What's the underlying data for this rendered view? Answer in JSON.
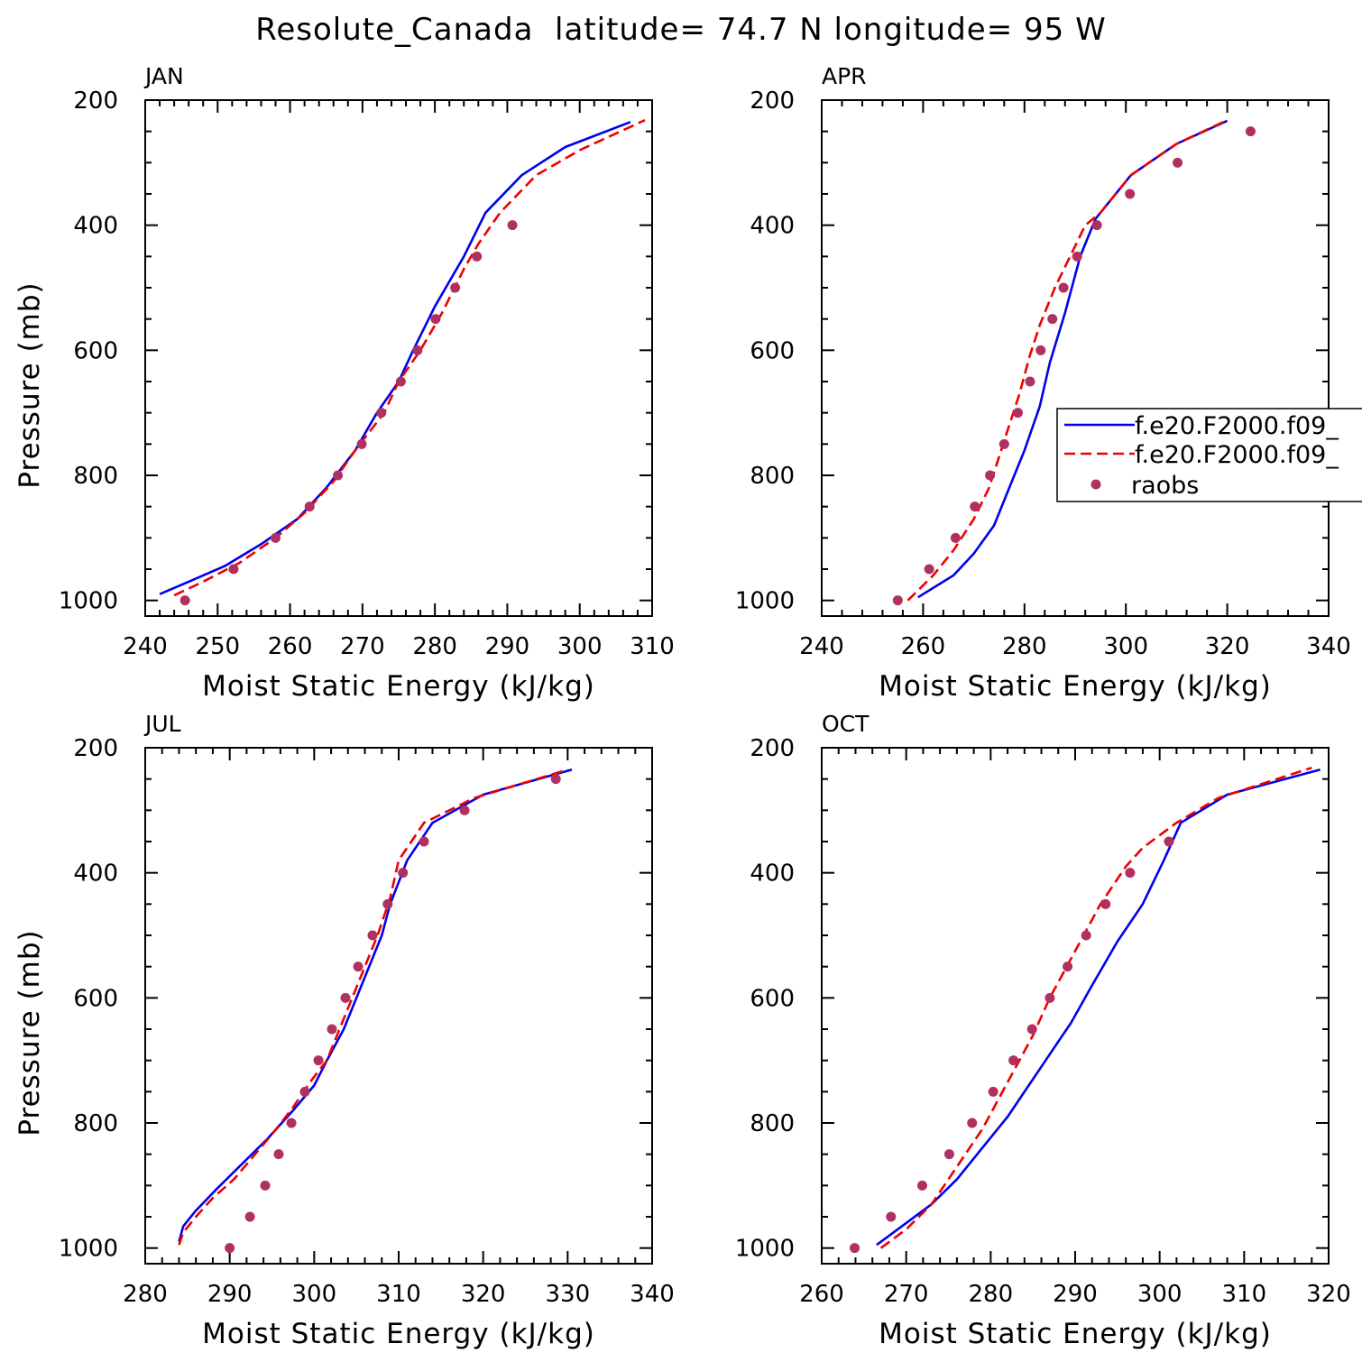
{
  "figure_title": "Resolute_Canada  latitude= 74.7 N longitude= 95 W",
  "legend": {
    "entries": [
      {
        "label": "f.e20.F2000.f09_",
        "style": "solid",
        "color": "#0000ee"
      },
      {
        "label": "f.e20.F2000.f09_",
        "style": "dashed",
        "color": "#ee0000"
      },
      {
        "label": "raobs",
        "style": "marker",
        "color": "#b03060"
      }
    ]
  },
  "chart_data": [
    {
      "type": "line",
      "title": "JAN",
      "xlabel": "Moist Static Energy (kJ/kg)",
      "ylabel": "Pressure (mb)",
      "xlim": [
        240,
        310
      ],
      "ylim": [
        1025,
        200
      ],
      "xticks": [
        240,
        250,
        260,
        270,
        280,
        290,
        300,
        310
      ],
      "yticks": [
        200,
        400,
        600,
        800,
        1000
      ],
      "series": [
        {
          "name": "f.e20.F2000.f09_",
          "style": "solid",
          "color": "#0000ee",
          "points": [
            [
              242,
              990
            ],
            [
              246,
              970
            ],
            [
              251,
              945
            ],
            [
              256,
              910
            ],
            [
              261,
              870
            ],
            [
              265,
              820
            ],
            [
              269,
              760
            ],
            [
              272,
              700
            ],
            [
              275,
              650
            ],
            [
              277,
              600
            ],
            [
              280,
              530
            ],
            [
              284,
              450
            ],
            [
              287,
              380
            ],
            [
              292,
              320
            ],
            [
              298,
              275
            ],
            [
              307,
              235
            ]
          ]
        },
        {
          "name": "f.e20.F2000.f09_",
          "style": "dashed",
          "color": "#ee0000",
          "points": [
            [
              244,
              992
            ],
            [
              248,
              970
            ],
            [
              253,
              940
            ],
            [
              258,
              900
            ],
            [
              262,
              860
            ],
            [
              266,
              810
            ],
            [
              269,
              760
            ],
            [
              273,
              700
            ],
            [
              275,
              650
            ],
            [
              278,
              600
            ],
            [
              281,
              540
            ],
            [
              284,
              470
            ],
            [
              286,
              430
            ],
            [
              289,
              380
            ],
            [
              294,
              320
            ],
            [
              300,
              280
            ],
            [
              309,
              232
            ]
          ]
        },
        {
          "name": "raobs",
          "style": "marker",
          "color": "#b03060",
          "points": [
            [
              245.5,
              1000
            ],
            [
              252.2,
              950
            ],
            [
              258,
              900
            ],
            [
              262.7,
              850
            ],
            [
              266.6,
              800
            ],
            [
              269.9,
              750
            ],
            [
              272.6,
              700
            ],
            [
              275.3,
              650
            ],
            [
              277.6,
              600
            ],
            [
              280.1,
              550
            ],
            [
              282.8,
              500
            ],
            [
              285.8,
              450
            ],
            [
              290.7,
              400
            ]
          ]
        }
      ]
    },
    {
      "type": "line",
      "title": "APR",
      "xlabel": "Moist Static Energy (kJ/kg)",
      "ylabel": "",
      "xlim": [
        240,
        340
      ],
      "ylim": [
        1025,
        200
      ],
      "xticks": [
        240,
        260,
        280,
        300,
        320,
        340
      ],
      "yticks": [
        200,
        400,
        600,
        800,
        1000
      ],
      "series": [
        {
          "name": "f.e20.F2000.f09_",
          "style": "solid",
          "color": "#0000ee",
          "points": [
            [
              259,
              995
            ],
            [
              266,
              960
            ],
            [
              270,
              925
            ],
            [
              274,
              880
            ],
            [
              277,
              820
            ],
            [
              280,
              760
            ],
            [
              283,
              690
            ],
            [
              285,
              620
            ],
            [
              288,
              540
            ],
            [
              291,
              450
            ],
            [
              294,
              390
            ],
            [
              297,
              360
            ],
            [
              301,
              320
            ],
            [
              310,
              270
            ],
            [
              320,
              233
            ]
          ]
        },
        {
          "name": "f.e20.F2000.f09_",
          "style": "dashed",
          "color": "#ee0000",
          "points": [
            [
              257,
              1000
            ],
            [
              262,
              960
            ],
            [
              266,
              920
            ],
            [
              270,
              870
            ],
            [
              273,
              820
            ],
            [
              275,
              770
            ],
            [
              277,
              720
            ],
            [
              279,
              670
            ],
            [
              281,
              610
            ],
            [
              283,
              560
            ],
            [
              286,
              500
            ],
            [
              289,
              450
            ],
            [
              292,
              400
            ],
            [
              295,
              380
            ],
            [
              301,
              320
            ],
            [
              310,
              270
            ],
            [
              320,
              232
            ]
          ]
        },
        {
          "name": "raobs",
          "style": "marker",
          "color": "#b03060",
          "points": [
            [
              255,
              1000
            ],
            [
              261.2,
              950
            ],
            [
              266.4,
              900
            ],
            [
              270.2,
              850
            ],
            [
              273.2,
              800
            ],
            [
              276,
              750
            ],
            [
              278.7,
              700
            ],
            [
              281.1,
              650
            ],
            [
              283.2,
              600
            ],
            [
              285.5,
              550
            ],
            [
              287.7,
              500
            ],
            [
              290.4,
              450
            ],
            [
              294.3,
              400
            ],
            [
              300.8,
              350
            ],
            [
              310.2,
              300
            ],
            [
              324.6,
              250
            ]
          ]
        }
      ]
    },
    {
      "type": "line",
      "title": "JUL",
      "xlabel": "Moist Static Energy (kJ/kg)",
      "ylabel": "Pressure (mb)",
      "xlim": [
        280,
        340
      ],
      "ylim": [
        1025,
        200
      ],
      "xticks": [
        280,
        290,
        300,
        310,
        320,
        330,
        340
      ],
      "yticks": [
        200,
        400,
        600,
        800,
        1000
      ],
      "series": [
        {
          "name": "f.e20.F2000.f09_",
          "style": "solid",
          "color": "#0000ee",
          "points": [
            [
              284,
              990
            ],
            [
              284.5,
              965
            ],
            [
              286,
              940
            ],
            [
              288.5,
              905
            ],
            [
              291.5,
              865
            ],
            [
              294.5,
              825
            ],
            [
              297.5,
              780
            ],
            [
              300,
              740
            ],
            [
              301.5,
              700
            ],
            [
              303.5,
              650
            ],
            [
              305,
              600
            ],
            [
              306.5,
              550
            ],
            [
              308,
              500
            ],
            [
              309,
              450
            ],
            [
              311,
              380
            ],
            [
              314,
              320
            ],
            [
              320,
              275
            ],
            [
              330.5,
              235
            ]
          ]
        },
        {
          "name": "f.e20.F2000.f09_",
          "style": "dashed",
          "color": "#ee0000",
          "points": [
            [
              284,
              995
            ],
            [
              284.5,
              975
            ],
            [
              286,
              950
            ],
            [
              288,
              920
            ],
            [
              290.5,
              890
            ],
            [
              293,
              850
            ],
            [
              295.5,
              810
            ],
            [
              297.5,
              775
            ],
            [
              299.5,
              735
            ],
            [
              301.5,
              700
            ],
            [
              303,
              650
            ],
            [
              304.5,
              600
            ],
            [
              306,
              550
            ],
            [
              307.5,
              500
            ],
            [
              309,
              440
            ],
            [
              310,
              380
            ],
            [
              313,
              320
            ],
            [
              319,
              280
            ],
            [
              330,
              235
            ]
          ]
        },
        {
          "name": "raobs",
          "style": "marker",
          "color": "#b03060",
          "points": [
            [
              290,
              1000
            ],
            [
              292.4,
              950
            ],
            [
              294.2,
              900
            ],
            [
              295.8,
              850
            ],
            [
              297.3,
              800
            ],
            [
              298.9,
              750
            ],
            [
              300.5,
              700
            ],
            [
              302.1,
              650
            ],
            [
              303.7,
              600
            ],
            [
              305.2,
              550
            ],
            [
              306.9,
              500
            ],
            [
              308.7,
              450
            ],
            [
              310.5,
              400
            ],
            [
              313,
              350
            ],
            [
              317.8,
              300
            ],
            [
              328.6,
              250
            ]
          ]
        }
      ]
    },
    {
      "type": "line",
      "title": "OCT",
      "xlabel": "Moist Static Energy (kJ/kg)",
      "ylabel": "",
      "xlim": [
        260,
        320
      ],
      "ylim": [
        1025,
        200
      ],
      "xticks": [
        260,
        270,
        280,
        290,
        300,
        310,
        320
      ],
      "yticks": [
        200,
        400,
        600,
        800,
        1000
      ],
      "series": [
        {
          "name": "f.e20.F2000.f09_",
          "style": "solid",
          "color": "#0000ee",
          "points": [
            [
              266.5,
              995
            ],
            [
              270,
              960
            ],
            [
              273,
              930
            ],
            [
              276,
              890
            ],
            [
              279,
              840
            ],
            [
              282,
              790
            ],
            [
              284.5,
              740
            ],
            [
              287,
              690
            ],
            [
              289.5,
              640
            ],
            [
              292,
              580
            ],
            [
              295,
              510
            ],
            [
              298,
              450
            ],
            [
              300.5,
              380
            ],
            [
              302.5,
              320
            ],
            [
              308,
              275
            ],
            [
              319,
              235
            ]
          ]
        },
        {
          "name": "f.e20.F2000.f09_",
          "style": "dashed",
          "color": "#ee0000",
          "points": [
            [
              267,
              1000
            ],
            [
              270,
              970
            ],
            [
              273,
              930
            ],
            [
              275,
              890
            ],
            [
              277,
              850
            ],
            [
              279,
              810
            ],
            [
              281,
              760
            ],
            [
              283,
              710
            ],
            [
              285,
              660
            ],
            [
              287,
              600
            ],
            [
              289,
              550
            ],
            [
              291,
              500
            ],
            [
              293,
              450
            ],
            [
              296,
              390
            ],
            [
              298,
              360
            ],
            [
              302,
              320
            ],
            [
              307,
              280
            ],
            [
              318,
              232
            ]
          ]
        },
        {
          "name": "raobs",
          "style": "marker",
          "color": "#b03060",
          "points": [
            [
              263.9,
              1000
            ],
            [
              268.2,
              950
            ],
            [
              271.9,
              900
            ],
            [
              275.1,
              850
            ],
            [
              277.8,
              800
            ],
            [
              280.3,
              750
            ],
            [
              282.7,
              700
            ],
            [
              284.9,
              650
            ],
            [
              287,
              600
            ],
            [
              289.1,
              550
            ],
            [
              291.3,
              500
            ],
            [
              293.6,
              450
            ],
            [
              296.5,
              400
            ],
            [
              301.1,
              350
            ]
          ]
        }
      ]
    }
  ]
}
